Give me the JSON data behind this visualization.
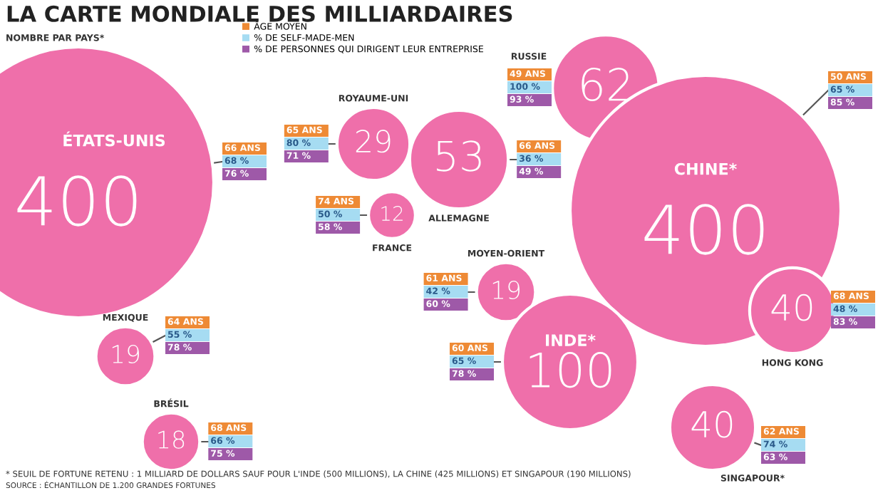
{
  "chart_data": {
    "type": "other",
    "title": "LA CARTE MONDIALE DES MILLIARDAIRES",
    "categories": [
      "ÉTATS-UNIS",
      "ROYAUME-UNI",
      "FRANCE",
      "ALLEMAGNE",
      "RUSSIE",
      "CHINE*",
      "MOYEN-ORIENT",
      "INDE*",
      "HONG KONG",
      "SINGAPOUR*",
      "MEXIQUE",
      "BRÉSIL"
    ],
    "series": [
      {
        "name": "NOMBRE PAR PAYS*",
        "type": "bubble",
        "color": "#ef6faa",
        "values": [
          400,
          29,
          12,
          53,
          62,
          400,
          19,
          100,
          40,
          40,
          19,
          18
        ],
        "value_labels": [
          "400",
          "29",
          "12",
          "53",
          "62",
          "400",
          "19",
          "100",
          "40",
          "40",
          "19",
          "18"
        ]
      },
      {
        "name": "ÂGE MOYEN",
        "color": "#ee8a35",
        "values": [
          66,
          65,
          74,
          66,
          49,
          50,
          61,
          60,
          68,
          62,
          64,
          68
        ],
        "value_labels": [
          "66 ANS",
          "65 ANS",
          "74 ANS",
          "66 ANS",
          "49 ANS",
          "50 ANS",
          "61 ANS",
          "60 ANS",
          "68 ANS",
          "62 ANS",
          "64 ANS",
          "68 ANS"
        ]
      },
      {
        "name": "% DE SELF-MADE-MEN",
        "color": "#a6dcf2",
        "values": [
          68,
          80,
          50,
          36,
          100,
          65,
          42,
          65,
          48,
          74,
          55,
          66
        ],
        "value_labels": [
          "68 %",
          "80 %",
          "50 %",
          "36 %",
          "100 %",
          "65 %",
          "42 %",
          "65 %",
          "48 %",
          "74 %",
          "55 %",
          "66 %"
        ]
      },
      {
        "name": "% DE PERSONNES QUI DIRIGENT LEUR ENTREPRISE",
        "color": "#9e59a8",
        "values": [
          76,
          71,
          58,
          49,
          93,
          85,
          60,
          78,
          83,
          63,
          78,
          75
        ],
        "value_labels": [
          "76 %",
          "71 %",
          "58 %",
          "49 %",
          "93 %",
          "85 %",
          "60 %",
          "78 %",
          "83 %",
          "63 %",
          "78 %",
          "75 %"
        ]
      }
    ],
    "legend": "top",
    "annotations": [
      "* SEUIL DE FORTUNE RETENU : 1 MILLIARD DE DOLLARS SAUF POUR L'INDE (500 MILLIONS), LA CHINE (425 MILLIONS) ET SINGAPOUR (190 MILLIONS)",
      "SOURCE : ÉCHANTILLON DE 1.200 GRANDES FORTUNES"
    ]
  }
}
